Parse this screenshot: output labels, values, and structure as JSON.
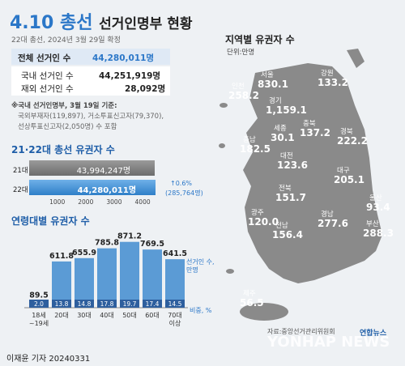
{
  "header": {
    "title_num": "4.10",
    "title_word": "총선",
    "title_rest": "선거인명부 현황",
    "subtitle": "22대 총선, 2024년 3월 29일 확정"
  },
  "totals": {
    "total_label": "전체 선거인 수",
    "total_value": "44,280,011명",
    "domestic_label": "국내 선거인 수",
    "domestic_value": "44,251,919명",
    "overseas_label": "재외 선거인 수",
    "overseas_value": "28,092명",
    "note1": "※국내 선거인명부, 3월 19일 기준:",
    "note2": "국외부재자(119,897), 거소투표신고자(79,370),",
    "note3": "선상투표신고자(2,050명) 수 포함"
  },
  "compare": {
    "title": "21·22대 총선 유권자 수",
    "row21_label": "21대",
    "row21_value": "43,994,247명",
    "row22_label": "22대",
    "row22_value": "44,280,011명",
    "change_pct": "↑0.6%",
    "change_abs": "(285,764명)",
    "ticks": [
      "1000",
      "2000",
      "3000",
      "4000"
    ],
    "scale_max": 4500,
    "v21": 4399.4,
    "v22": 4428.0
  },
  "age": {
    "title": "연령대별 유권자 수",
    "unit_label_1": "선거인 수,",
    "unit_label_2": "만명",
    "share_label": "비중, %"
  },
  "map": {
    "title": "지역별 유권자 수",
    "unit": "단위:만명",
    "regions": [
      {
        "name": "서울",
        "value": "830.1"
      },
      {
        "name": "인천",
        "value": "258.2"
      },
      {
        "name": "경기",
        "value": "1,159.1"
      },
      {
        "name": "강원",
        "value": "133.2"
      },
      {
        "name": "충북",
        "value": "137.2"
      },
      {
        "name": "세종",
        "value": "30.1"
      },
      {
        "name": "충남",
        "value": "182.5"
      },
      {
        "name": "대전",
        "value": "123.6"
      },
      {
        "name": "경북",
        "value": "222.2"
      },
      {
        "name": "대구",
        "value": "205.1"
      },
      {
        "name": "전북",
        "value": "151.7"
      },
      {
        "name": "울산",
        "value": "93.4"
      },
      {
        "name": "경남",
        "value": "277.6"
      },
      {
        "name": "부산",
        "value": "288.3"
      },
      {
        "name": "광주",
        "value": "120.0"
      },
      {
        "name": "전남",
        "value": "156.4"
      },
      {
        "name": "제주",
        "value": "56.5"
      }
    ]
  },
  "footer": {
    "credit": "이재윤 기자  20240331",
    "source": "자료:중앙선거관리위원회",
    "brand": "연합뉴스",
    "watermark": "YONHAP NEWS"
  },
  "colors": {
    "accent": "#2b77c8",
    "bar": "#5b9bd5",
    "bar_dark": "#2e5f9e",
    "map": "#888888"
  },
  "chart_data": {
    "type": "bar",
    "title": "연령대별 유권자 수",
    "categories": [
      "18세~19세",
      "20대",
      "30대",
      "40대",
      "50대",
      "60대",
      "70대 이상"
    ],
    "series": [
      {
        "name": "선거인 수, 만명",
        "values": [
          89.5,
          611.8,
          655.9,
          785.8,
          871.2,
          769.5,
          641.5
        ]
      },
      {
        "name": "비중, %",
        "values": [
          2.0,
          13.8,
          14.8,
          17.8,
          19.7,
          17.4,
          14.5
        ]
      }
    ],
    "ylim": [
      0,
      900
    ],
    "grid": false,
    "legend": "right"
  }
}
